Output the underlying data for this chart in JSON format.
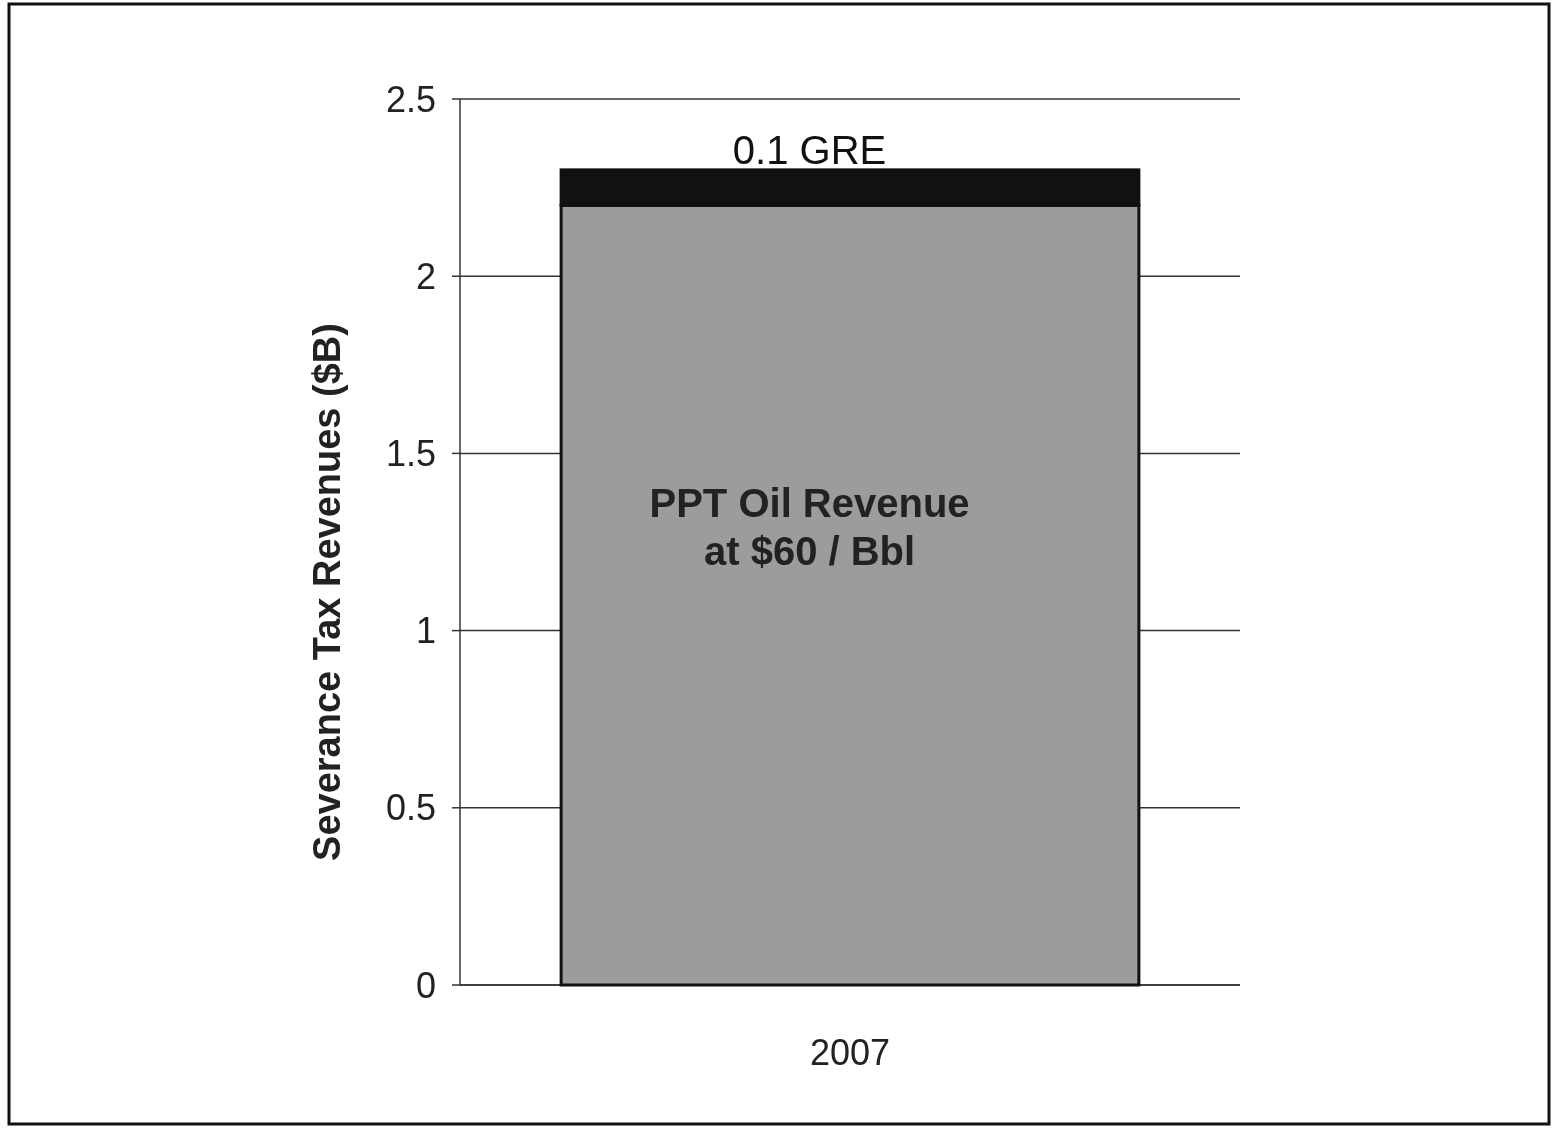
{
  "chart_data": {
    "type": "bar",
    "stacked": true,
    "categories": [
      "2007"
    ],
    "series": [
      {
        "name": "PPT Oil Revenue at $60 / Bbl",
        "color": "#9c9c9c",
        "values": [
          2.2
        ]
      },
      {
        "name": "0.1 GRE",
        "color": "#111111",
        "values": [
          0.1
        ]
      }
    ],
    "ylabel": "Severance Tax Revenues ($B)",
    "ylim": [
      0,
      2.5
    ],
    "yticks": [
      0,
      0.5,
      1,
      1.5,
      2,
      2.5
    ],
    "grid": "y"
  }
}
